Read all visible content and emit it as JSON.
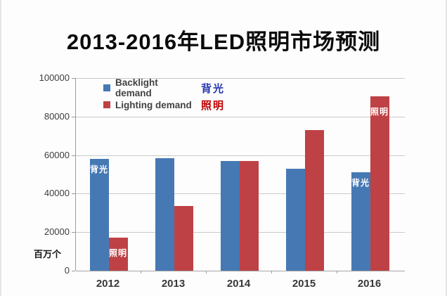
{
  "title": "2013-2016年LED照明市场预测",
  "legend": {
    "backlight": {
      "label": "Backlight demand",
      "cn": "背光",
      "cn_color": "#2434AE"
    },
    "lighting": {
      "label": "Lighting demand",
      "cn": "照明",
      "cn_color": "#C00000"
    }
  },
  "chart_data": {
    "type": "bar",
    "title": "2013-2016年LED照明市场预测",
    "categories": [
      "2012",
      "2013",
      "2014",
      "2015",
      "2016"
    ],
    "series": [
      {
        "name": "Backlight demand",
        "cn": "背光",
        "color": "#4679B4",
        "values": [
          58000,
          58500,
          57000,
          53000,
          51000
        ]
      },
      {
        "name": "Lighting demand",
        "cn": "照明",
        "color": "#BE4145",
        "values": [
          17000,
          33500,
          57000,
          73000,
          90500
        ]
      }
    ],
    "xlabel": "",
    "ylabel": "",
    "unit_label": "百万个",
    "ylim": [
      0,
      100000
    ],
    "ytick_values": [
      0,
      20000,
      40000,
      60000,
      80000,
      100000
    ],
    "grid": true,
    "legend_position": "top-left-inside",
    "bar_annotations": [
      {
        "category": "2012",
        "series": 0,
        "text": "背光"
      },
      {
        "category": "2012",
        "series": 1,
        "text": "照明"
      },
      {
        "category": "2016",
        "series": 0,
        "text": "背光"
      },
      {
        "category": "2016",
        "series": 1,
        "text": "照明"
      }
    ]
  }
}
